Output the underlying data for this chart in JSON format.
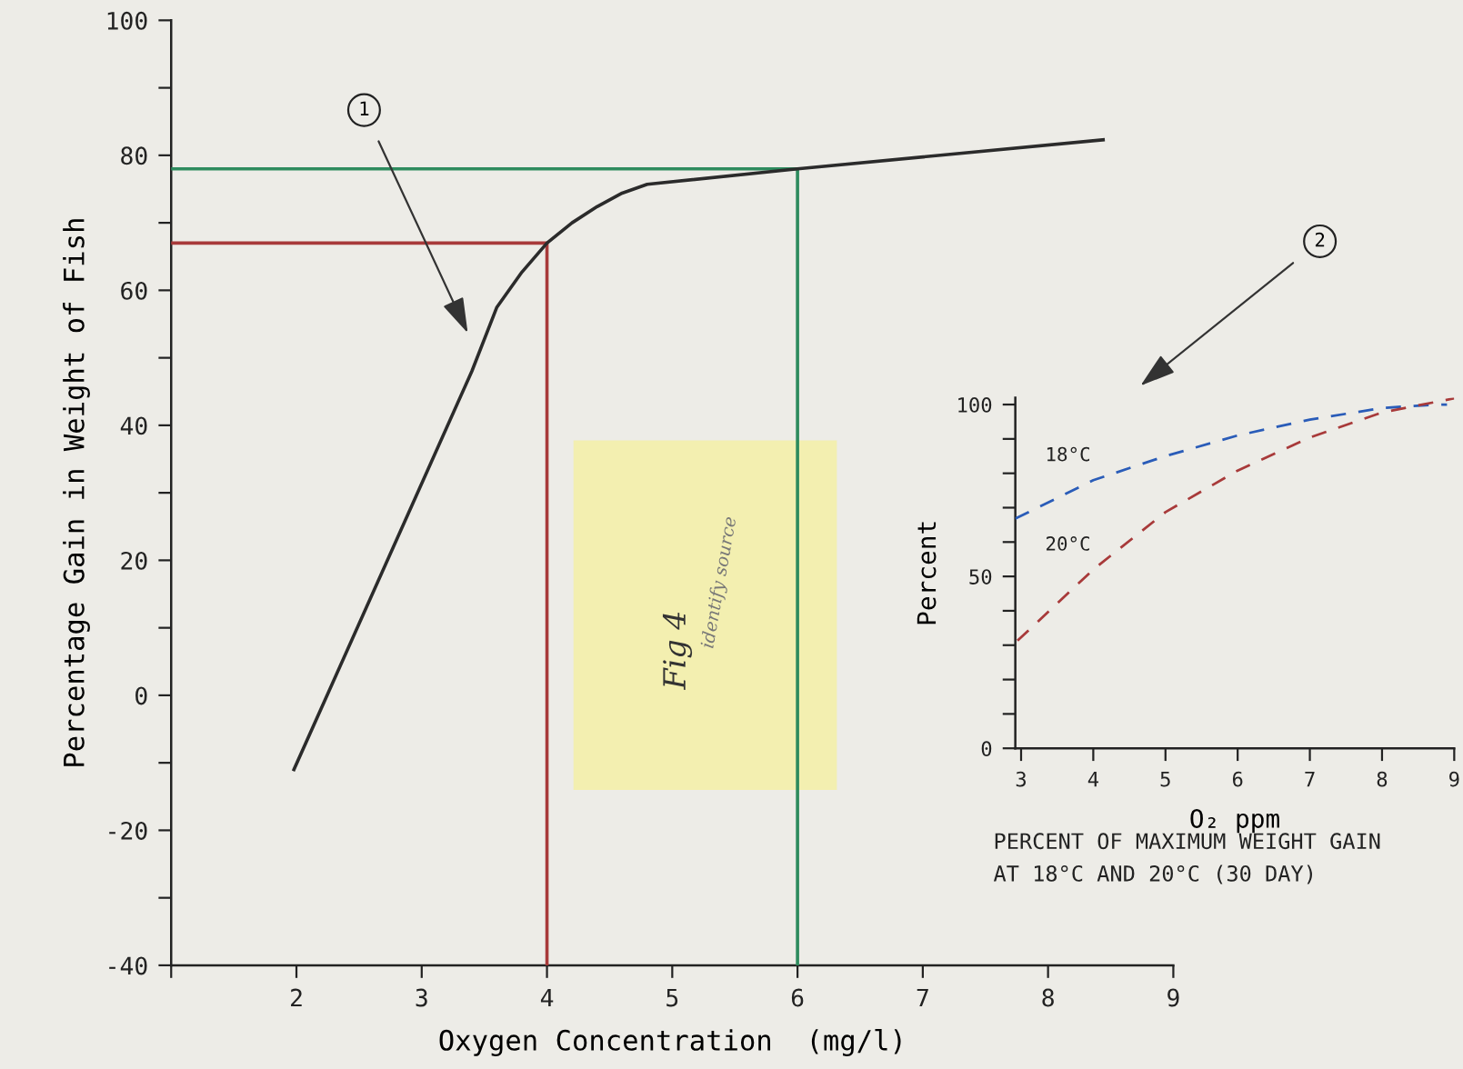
{
  "chart_data": [
    {
      "type": "line",
      "xlabel": "Oxygen Concentration  (mg/l)",
      "ylabel": "Percentage Gain in Weight of Fish",
      "xlim": [
        1,
        9
      ],
      "ylim": [
        -40,
        100
      ],
      "xticks": [
        {
          "value": 1,
          "label": null
        },
        2,
        3,
        4,
        5,
        6,
        7,
        8,
        9
      ],
      "yticks": [
        -40,
        {
          "value": -30,
          "label": null
        },
        -20,
        {
          "value": -10,
          "label": null
        },
        0,
        {
          "value": 10,
          "label": null
        },
        20,
        {
          "value": 30,
          "label": null
        },
        40,
        {
          "value": 50,
          "label": null
        },
        60,
        {
          "value": 70,
          "label": null
        },
        80,
        {
          "value": 90,
          "label": null
        },
        100
      ],
      "series": [
        {
          "color": "#a83a3a",
          "x": [
            1,
            4,
            4
          ],
          "values": [
            67,
            67,
            -40
          ]
        },
        {
          "color": "#2e8b5e",
          "x": [
            1,
            6,
            6
          ],
          "values": [
            78,
            78,
            -40
          ]
        },
        {
          "color": "#2b2b2b",
          "x": [
            1.98,
            3.4,
            3.6,
            3.8,
            4.0,
            4.2,
            4.4,
            4.6,
            4.8,
            6.0,
            8.44
          ],
          "values": [
            -11,
            48,
            57.5,
            62.7,
            67,
            70,
            72.4,
            74.4,
            75.7,
            78,
            82.3
          ]
        }
      ],
      "annotations": [
        "1",
        "Fig 4",
        "identify source"
      ]
    },
    {
      "type": "line",
      "xlabel": "O₂ ppm",
      "ylabel": "Percent",
      "xlim": [
        2.92,
        9
      ],
      "ylim": [
        0,
        102
      ],
      "xticks": [
        3,
        4,
        5,
        6,
        7,
        8,
        9
      ],
      "yticks": [
        0,
        {
          "value": 10,
          "label": null
        },
        {
          "value": 20,
          "label": null
        },
        {
          "value": 30,
          "label": null
        },
        {
          "value": 40,
          "label": null
        },
        50,
        {
          "value": 60,
          "label": null
        },
        {
          "value": 70,
          "label": null
        },
        {
          "value": 80,
          "label": null
        },
        {
          "value": 90,
          "label": null
        },
        100
      ],
      "series": [
        {
          "name": "18°C",
          "color": "#2a5cb8",
          "line_style": "dashed",
          "x": [
            2.92,
            4,
            5,
            6,
            7,
            8,
            8.6,
            8.9
          ],
          "values": [
            66.8,
            78,
            85,
            91,
            95.6,
            99,
            99.8,
            100
          ]
        },
        {
          "name": "20°C",
          "color": "#a83a3a",
          "line_style": "dashed",
          "x": [
            2.95,
            4,
            5,
            6,
            7,
            8,
            9
          ],
          "values": [
            31.3,
            52,
            68.7,
            80.8,
            90.4,
            97.7,
            101.8
          ]
        }
      ],
      "annotations": [
        "2",
        "PERCENT OF MAXIMUM WEIGHT GAIN\nAT 18°C AND 20°C (30 DAY)"
      ]
    }
  ]
}
